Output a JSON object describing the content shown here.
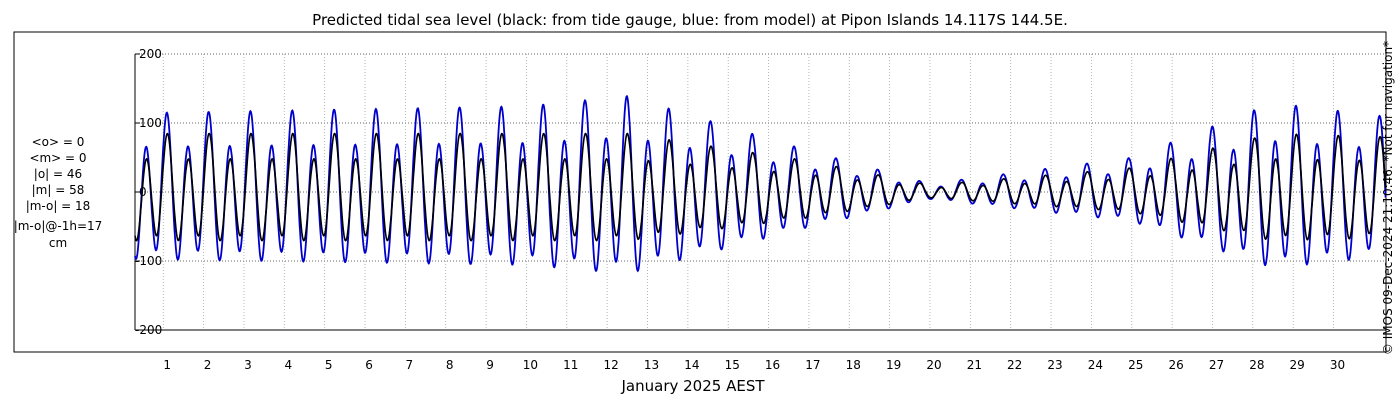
{
  "chart_data": {
    "type": "line",
    "title": "Predicted tidal sea level (black: from tide gauge, blue: from model) at Pipon Islands 14.117S 144.5E.",
    "xlabel": "January 2025 AEST",
    "ylabel": "cm",
    "x_ticks": [
      "1",
      "2",
      "3",
      "4",
      "5",
      "6",
      "7",
      "8",
      "9",
      "10",
      "11",
      "12",
      "13",
      "14",
      "15",
      "16",
      "17",
      "18",
      "19",
      "20",
      "21",
      "22",
      "23",
      "24",
      "25",
      "26",
      "27",
      "28",
      "29",
      "30"
    ],
    "x_range_days": [
      0.3,
      31.3
    ],
    "y_ticks": [
      "200",
      "100",
      "0",
      "-100",
      "-200"
    ],
    "y_tick_values": [
      200,
      100,
      0,
      -100,
      -200
    ],
    "ylim": [
      -200,
      200
    ],
    "grid": true,
    "series": [
      {
        "name": "tide gauge",
        "color": "#000000",
        "description": "Observed/predicted tide gauge sea level (cm), semi-diurnal tide with spring–neap modulation",
        "amplitude_envelope_days": [
          0.3,
          10,
          12.5,
          17,
          20,
          25,
          28.5,
          31.3
        ],
        "amplitude_envelope_cm": [
          85,
          85,
          85,
          45,
          10,
          35,
          85,
          80
        ]
      },
      {
        "name": "model",
        "color": "#0000cc",
        "description": "Model sea level (cm), semi-diurnal tide with spring–neap modulation",
        "amplitude_envelope_days": [
          0.3,
          10,
          12.5,
          17,
          20,
          25,
          28.5,
          31.3
        ],
        "amplitude_envelope_cm": [
          115,
          125,
          140,
          60,
          12,
          50,
          130,
          110
        ]
      }
    ]
  },
  "stats": {
    "mean_obs": "<o> = 0",
    "mean_model": "<m> = 0",
    "abs_obs": "|o| = 46",
    "abs_model": "|m| = 58",
    "abs_diff": "|m-o| = 18",
    "abs_diff_lag": "|m-o|@-1h=17",
    "unit": "cm"
  },
  "credit": "© IMOS 09-Dec-2024 21:10:46. *Not for navigation*"
}
